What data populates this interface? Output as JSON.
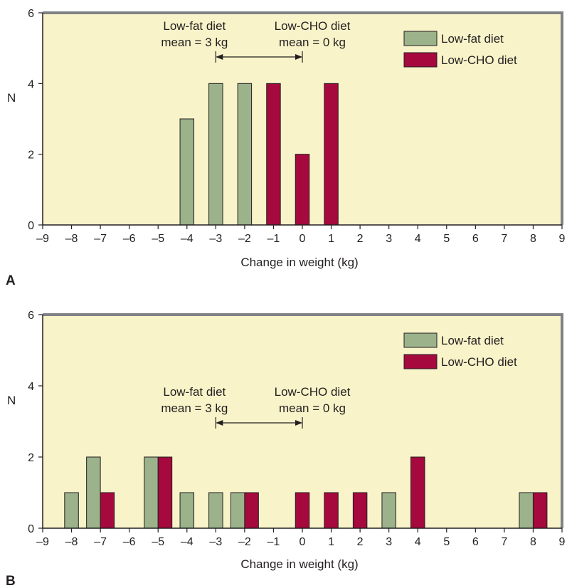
{
  "colors": {
    "plot_background": "#f8f3c9",
    "frame": "#808285",
    "low_fat": "#9bb28b",
    "low_cho": "#a6093d",
    "bar_stroke": "#231f20",
    "text": "#231f20"
  },
  "chart_data": [
    {
      "panel_label": "A",
      "type": "bar",
      "xlabel": "Change in weight (kg)",
      "ylabel": "N",
      "xlim": [
        -9,
        9
      ],
      "ylim": [
        0,
        6
      ],
      "x_ticks": [
        -9,
        -8,
        -7,
        -6,
        -5,
        -4,
        -3,
        -2,
        -1,
        0,
        1,
        2,
        3,
        4,
        5,
        6,
        7,
        8,
        9
      ],
      "x_tick_labels": [
        "–9",
        "–8",
        "–7",
        "–6",
        "–5",
        "–4",
        "–3",
        "–2",
        "–1",
        "0",
        "1",
        "2",
        "3",
        "4",
        "5",
        "6",
        "7",
        "8",
        "9"
      ],
      "y_ticks": [
        0,
        2,
        4,
        6
      ],
      "y_tick_labels": [
        "0",
        "2",
        "4",
        "6"
      ],
      "grid": false,
      "legend_position": "top-right",
      "series": [
        {
          "name": "Low-fat diet",
          "color": "#9bb28b",
          "x": [
            -4,
            -3,
            -2
          ],
          "values": [
            3,
            4,
            4
          ]
        },
        {
          "name": "Low-CHO diet",
          "color": "#a6093d",
          "x": [
            -1,
            0,
            1
          ],
          "values": [
            4,
            2,
            4
          ]
        }
      ],
      "annotations": {
        "low_fat_label": [
          "Low-fat diet",
          "mean = 3 kg"
        ],
        "low_cho_label": [
          "Low-CHO diet",
          "mean = 0 kg"
        ],
        "arrow_from": -3,
        "arrow_to": 0
      }
    },
    {
      "panel_label": "B",
      "type": "bar",
      "xlabel": "Change in weight (kg)",
      "ylabel": "N",
      "xlim": [
        -9,
        9
      ],
      "ylim": [
        0,
        6
      ],
      "x_ticks": [
        -9,
        -8,
        -7,
        -6,
        -5,
        -4,
        -3,
        -2,
        -1,
        0,
        1,
        2,
        3,
        4,
        5,
        6,
        7,
        8,
        9
      ],
      "x_tick_labels": [
        "–9",
        "–8",
        "–7",
        "–6",
        "–5",
        "–4",
        "–3",
        "–2",
        "–1",
        "0",
        "1",
        "2",
        "3",
        "4",
        "5",
        "6",
        "7",
        "8",
        "9"
      ],
      "y_ticks": [
        0,
        2,
        4,
        6
      ],
      "y_tick_labels": [
        "0",
        "2",
        "4",
        "6"
      ],
      "grid": false,
      "legend_position": "top-right",
      "series": [
        {
          "name": "Low-fat diet",
          "color": "#9bb28b",
          "x": [
            -8,
            -7,
            -5,
            -4,
            -3,
            -2,
            3,
            8
          ],
          "values": [
            1,
            2,
            2,
            1,
            1,
            1,
            1,
            1
          ]
        },
        {
          "name": "Low-CHO diet",
          "color": "#a6093d",
          "x": [
            -7,
            -5,
            -2,
            0,
            1,
            2,
            4,
            8
          ],
          "values": [
            1,
            2,
            1,
            1,
            1,
            1,
            2,
            1
          ]
        }
      ],
      "annotations": {
        "low_fat_label": [
          "Low-fat diet",
          "mean = 3 kg"
        ],
        "low_cho_label": [
          "Low-CHO diet",
          "mean = 0 kg"
        ],
        "arrow_from": -3,
        "arrow_to": 0
      }
    }
  ]
}
